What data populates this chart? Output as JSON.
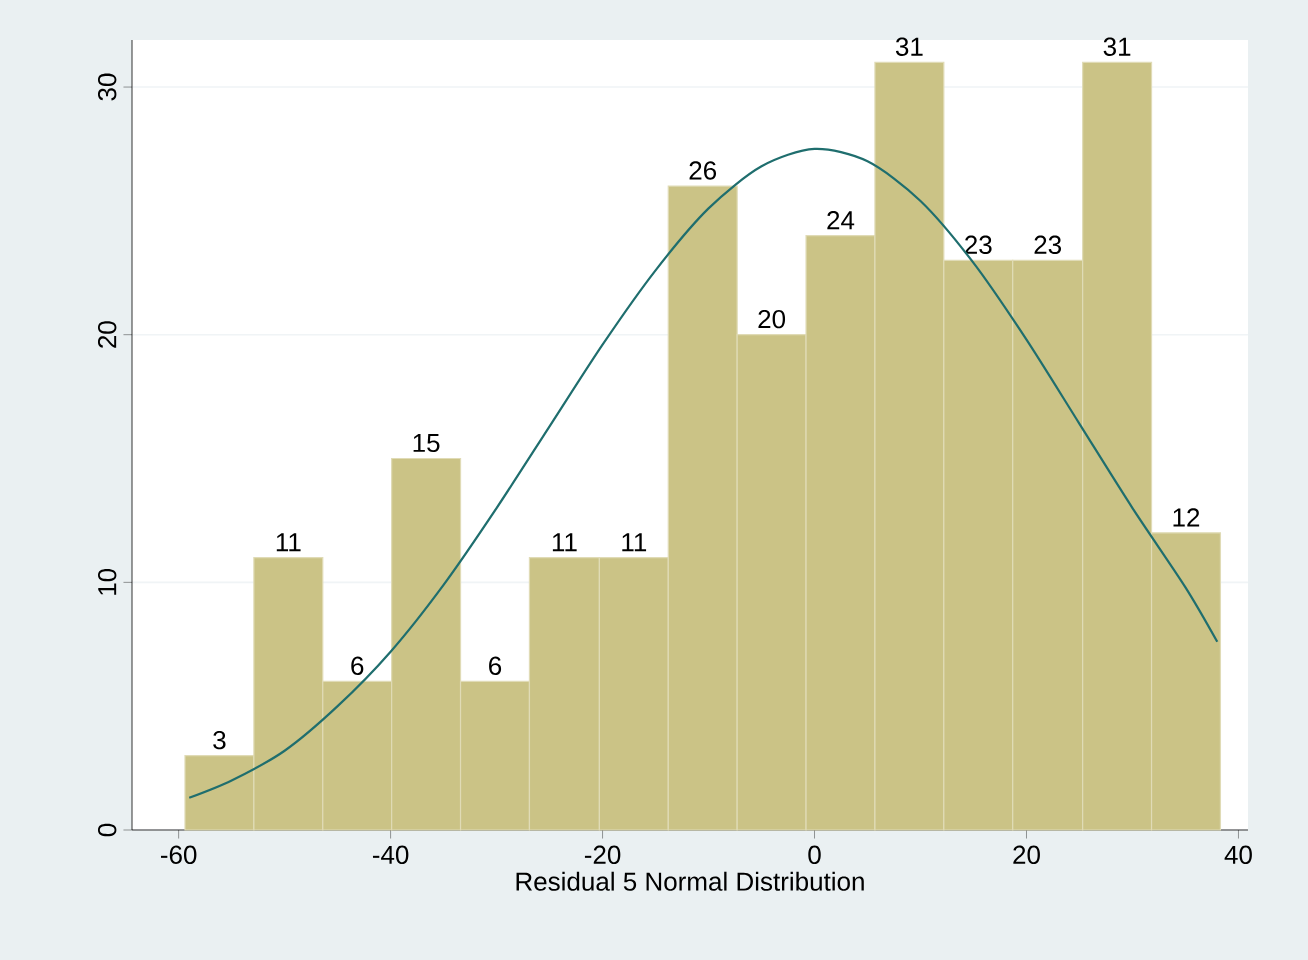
{
  "chart_data": {
    "type": "histogram",
    "xlabel": "Residual 5 Normal Distribution",
    "bins": [
      -59.4,
      -52.9,
      -46.4,
      -39.9,
      -33.4,
      -26.9,
      -20.3,
      -13.8,
      -7.3,
      -0.8,
      5.7,
      12.2,
      18.7,
      25.3,
      31.8,
      38.3
    ],
    "values": [
      3,
      11,
      6,
      15,
      6,
      11,
      11,
      26,
      20,
      24,
      31,
      23,
      23,
      31,
      12
    ],
    "color": "#cbc386",
    "value_labels": [
      "3",
      "11",
      "6",
      "15",
      "6",
      "11",
      "11",
      "26",
      "20",
      "24",
      "31",
      "23",
      "23",
      "31",
      "12"
    ],
    "grid": "y",
    "xlim": [
      -64.4,
      40.9
    ],
    "ylim": [
      0,
      31.9
    ],
    "xticks": [
      -60,
      -40,
      -20,
      0,
      20,
      40
    ],
    "yticks": [
      0,
      10,
      20,
      30
    ],
    "series": [
      {
        "type": "line",
        "color": "#1f6e6e",
        "x": [
          -59,
          -55,
          -50,
          -45,
          -40,
          -35,
          -30,
          -25,
          -20,
          -15,
          -10,
          -5,
          0,
          5,
          10,
          15,
          20,
          25,
          30,
          35,
          38
        ],
        "values": [
          1.3,
          2.0,
          3.2,
          5.0,
          7.2,
          9.9,
          13.0,
          16.3,
          19.6,
          22.6,
          25.1,
          26.8,
          27.5,
          27.0,
          25.4,
          22.9,
          19.8,
          16.4,
          13.0,
          9.8,
          7.6
        ]
      }
    ]
  }
}
